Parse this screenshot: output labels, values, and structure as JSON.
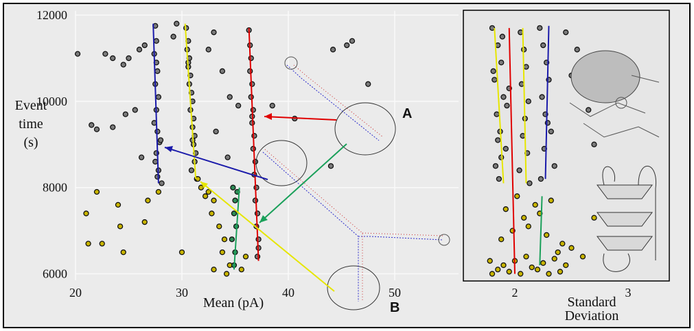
{
  "chart_data": [
    {
      "type": "scatter",
      "xlabel": "Mean (pA)",
      "ylabel": "Event time (s)",
      "xlim": [
        20,
        56
      ],
      "ylim": [
        5850,
        12100
      ],
      "xticks": [
        20,
        30,
        40,
        50
      ],
      "yticks": [
        6000,
        8000,
        10000,
        12000
      ],
      "grid": true,
      "annotations": [
        "A",
        "B"
      ],
      "series": [
        {
          "color": "#7a7a7a",
          "mode": "points",
          "x": [
            27.5,
            27.6,
            27.4,
            27.7,
            27.5,
            27.8,
            27.6,
            27.4,
            27.7,
            27.9,
            27.6,
            27.5,
            27.8,
            27.7,
            28.1,
            27.6,
            30.4,
            30.6,
            30.5,
            30.7,
            30.6,
            30.8,
            30.7,
            30.9,
            31.0,
            30.8,
            31.1,
            31.0,
            31.2,
            31.1,
            31.3,
            31.2,
            30.9,
            31.4,
            30.6,
            31.0,
            36.3,
            36.4,
            36.5,
            36.4,
            36.6,
            36.5,
            36.7,
            36.6,
            36.8,
            36.7,
            36.9,
            36.8,
            37.0,
            36.9,
            37.1,
            37.0,
            37.2,
            37.1,
            36.6,
            37.2,
            20.2,
            22.8,
            23.5,
            24.5,
            25.0,
            26.0,
            26.5,
            23.5,
            24.7,
            22.0,
            21.5,
            26.2,
            25.6,
            29.2,
            32.5,
            33.8,
            34.5,
            35.3,
            33.2,
            34.3,
            38.5,
            40.6,
            44.2,
            45.5,
            47.5,
            46.0,
            44.0,
            28.0,
            29.5,
            33.0
          ],
          "values": [
            11750,
            11400,
            11100,
            10700,
            10400,
            10100,
            9800,
            9500,
            9300,
            9050,
            8800,
            8600,
            8400,
            8250,
            8100,
            10900,
            11700,
            11400,
            11200,
            11000,
            10800,
            10600,
            10400,
            10200,
            10000,
            9800,
            9600,
            9400,
            9200,
            9000,
            8800,
            8600,
            8400,
            8200,
            10900,
            9100,
            11650,
            11300,
            11000,
            10700,
            10400,
            10100,
            9800,
            9500,
            9200,
            8900,
            8600,
            8300,
            8000,
            7700,
            7400,
            7100,
            6800,
            6400,
            9650,
            6600,
            11100,
            11100,
            11000,
            10850,
            11000,
            11200,
            11300,
            9400,
            9700,
            9350,
            9450,
            8700,
            9800,
            11500,
            11200,
            10700,
            10100,
            9900,
            9300,
            8700,
            9900,
            9600,
            11200,
            11300,
            10400,
            11400,
            8500,
            9100,
            11800,
            11600
          ]
        },
        {
          "color": "#c8b400",
          "mode": "points",
          "x": [
            21.0,
            22.0,
            24.0,
            24.5,
            26.5,
            26.8,
            21.2,
            22.5,
            24.2,
            30.0,
            31.5,
            32.5,
            33.0,
            32.8,
            33.5,
            34.0,
            33.8,
            34.5,
            34.2,
            33.0,
            31.8,
            32.2,
            35.6,
            36.0,
            27.8
          ],
          "values": [
            7400,
            7900,
            7600,
            6500,
            7200,
            7700,
            6700,
            6700,
            7100,
            6500,
            8200,
            7900,
            7700,
            7400,
            7100,
            6800,
            6500,
            6200,
            6000,
            6100,
            8000,
            7800,
            6100,
            6400,
            7900
          ]
        },
        {
          "color": "#2e8b57",
          "mode": "points",
          "x": [
            34.8,
            35.0,
            34.9,
            35.1,
            34.7,
            35.0,
            34.9,
            35.2
          ],
          "values": [
            8000,
            7700,
            7400,
            7100,
            6800,
            6500,
            6200,
            7900
          ]
        },
        {
          "color": "#1a1aaa",
          "mode": "line",
          "x": [
            27.3,
            27.8
          ],
          "values": [
            11800,
            8100
          ]
        },
        {
          "color": "#e6e600",
          "mode": "line",
          "x": [
            30.3,
            31.3
          ],
          "values": [
            11800,
            8200
          ]
        },
        {
          "color": "#e00000",
          "mode": "line",
          "x": [
            36.3,
            37.2
          ],
          "values": [
            11700,
            6300
          ]
        },
        {
          "color": "#1aa05a",
          "mode": "line",
          "x": [
            35.4,
            34.9
          ],
          "values": [
            8000,
            6100
          ]
        }
      ]
    },
    {
      "type": "scatter",
      "xlabel": "Standard Deviation",
      "xlim": [
        1.55,
        3.36
      ],
      "ylim": [
        5850,
        12100
      ],
      "xticks": [
        2,
        3
      ],
      "grid": false,
      "series": [
        {
          "color": "#7a7a7a",
          "mode": "points",
          "x": [
            1.8,
            1.85,
            1.88,
            1.82,
            1.9,
            1.84,
            1.87,
            1.92,
            1.83,
            1.86,
            1.89,
            1.81,
            1.93,
            1.85,
            1.88,
            1.95,
            2.05,
            2.08,
            2.1,
            2.06,
            2.12,
            2.09,
            2.07,
            2.11,
            2.04,
            2.13,
            2.22,
            2.25,
            2.28,
            2.3,
            2.24,
            2.27,
            2.32,
            2.26,
            2.35,
            2.23,
            2.29,
            2.45,
            2.55,
            2.65,
            2.7,
            2.5
          ],
          "values": [
            11700,
            11300,
            10900,
            10500,
            10100,
            9700,
            9300,
            8900,
            8500,
            8200,
            11500,
            10700,
            9900,
            9100,
            8700,
            10300,
            11600,
            11200,
            10800,
            10400,
            10000,
            9600,
            9200,
            8800,
            8400,
            8100,
            11700,
            11300,
            10900,
            10500,
            10100,
            9700,
            9300,
            8900,
            8500,
            8200,
            9500,
            11600,
            11200,
            9800,
            9000,
            10600
          ]
        },
        {
          "color": "#c8b400",
          "mode": "points",
          "x": [
            1.8,
            1.85,
            1.9,
            1.95,
            2.0,
            2.05,
            2.1,
            2.15,
            2.2,
            2.25,
            2.3,
            2.35,
            2.4,
            2.45,
            1.88,
            1.98,
            2.08,
            2.18,
            2.28,
            2.38,
            2.5,
            2.6,
            2.7,
            1.92,
            2.02,
            2.12,
            2.22,
            2.32,
            2.42,
            1.78
          ],
          "values": [
            6000,
            6100,
            6200,
            6050,
            6300,
            6000,
            6400,
            6150,
            6100,
            6250,
            6000,
            6350,
            6050,
            6200,
            6800,
            7000,
            7300,
            7600,
            6900,
            6500,
            6600,
            6400,
            7300,
            7500,
            7800,
            7100,
            7400,
            7700,
            6700,
            6300
          ]
        },
        {
          "color": "#e6e600",
          "mode": "line",
          "x": [
            1.82,
            1.9
          ],
          "values": [
            11700,
            8100
          ]
        },
        {
          "color": "#e00000",
          "mode": "line",
          "x": [
            1.95,
            2.0
          ],
          "values": [
            11700,
            6000
          ]
        },
        {
          "color": "#e6e600",
          "mode": "line",
          "x": [
            2.07,
            2.1
          ],
          "values": [
            11700,
            8100
          ]
        },
        {
          "color": "#1a1aaa",
          "mode": "line",
          "x": [
            2.3,
            2.27
          ],
          "values": [
            11750,
            8200
          ]
        },
        {
          "color": "#1aa05a",
          "mode": "line",
          "x": [
            2.24,
            2.22
          ],
          "values": [
            7800,
            6200
          ]
        }
      ]
    }
  ]
}
